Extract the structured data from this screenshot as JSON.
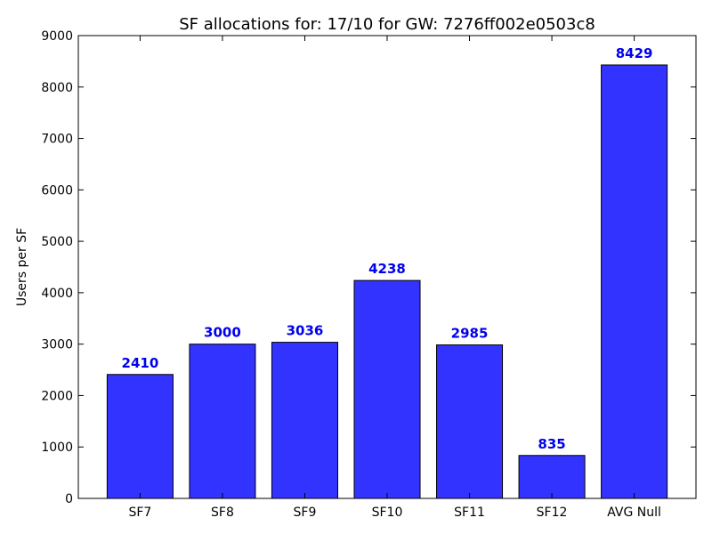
{
  "chart_data": {
    "type": "bar",
    "title": "SF allocations for: 17/10 for GW: 7276ff002e0503c8",
    "xlabel": "",
    "ylabel": "Users per SF",
    "categories": [
      "SF7",
      "SF8",
      "SF9",
      "SF10",
      "SF11",
      "SF12",
      "AVG Null"
    ],
    "values": [
      2410,
      3000,
      3036,
      4238,
      2985,
      835,
      8429
    ],
    "data_labels": [
      "2410",
      "3000",
      "3036",
      "4238",
      "2985",
      "835",
      "8429"
    ],
    "ylim": [
      0,
      9000
    ],
    "yticks": [
      0,
      1000,
      2000,
      3000,
      4000,
      5000,
      6000,
      7000,
      8000,
      9000
    ],
    "ytick_labels": [
      "0",
      "1000",
      "2000",
      "3000",
      "4000",
      "5000",
      "6000",
      "7000",
      "8000",
      "9000"
    ],
    "grid": false,
    "bar_color": "#3333ff",
    "bar_edge_color": "#000000",
    "label_color": "#0000ee"
  }
}
